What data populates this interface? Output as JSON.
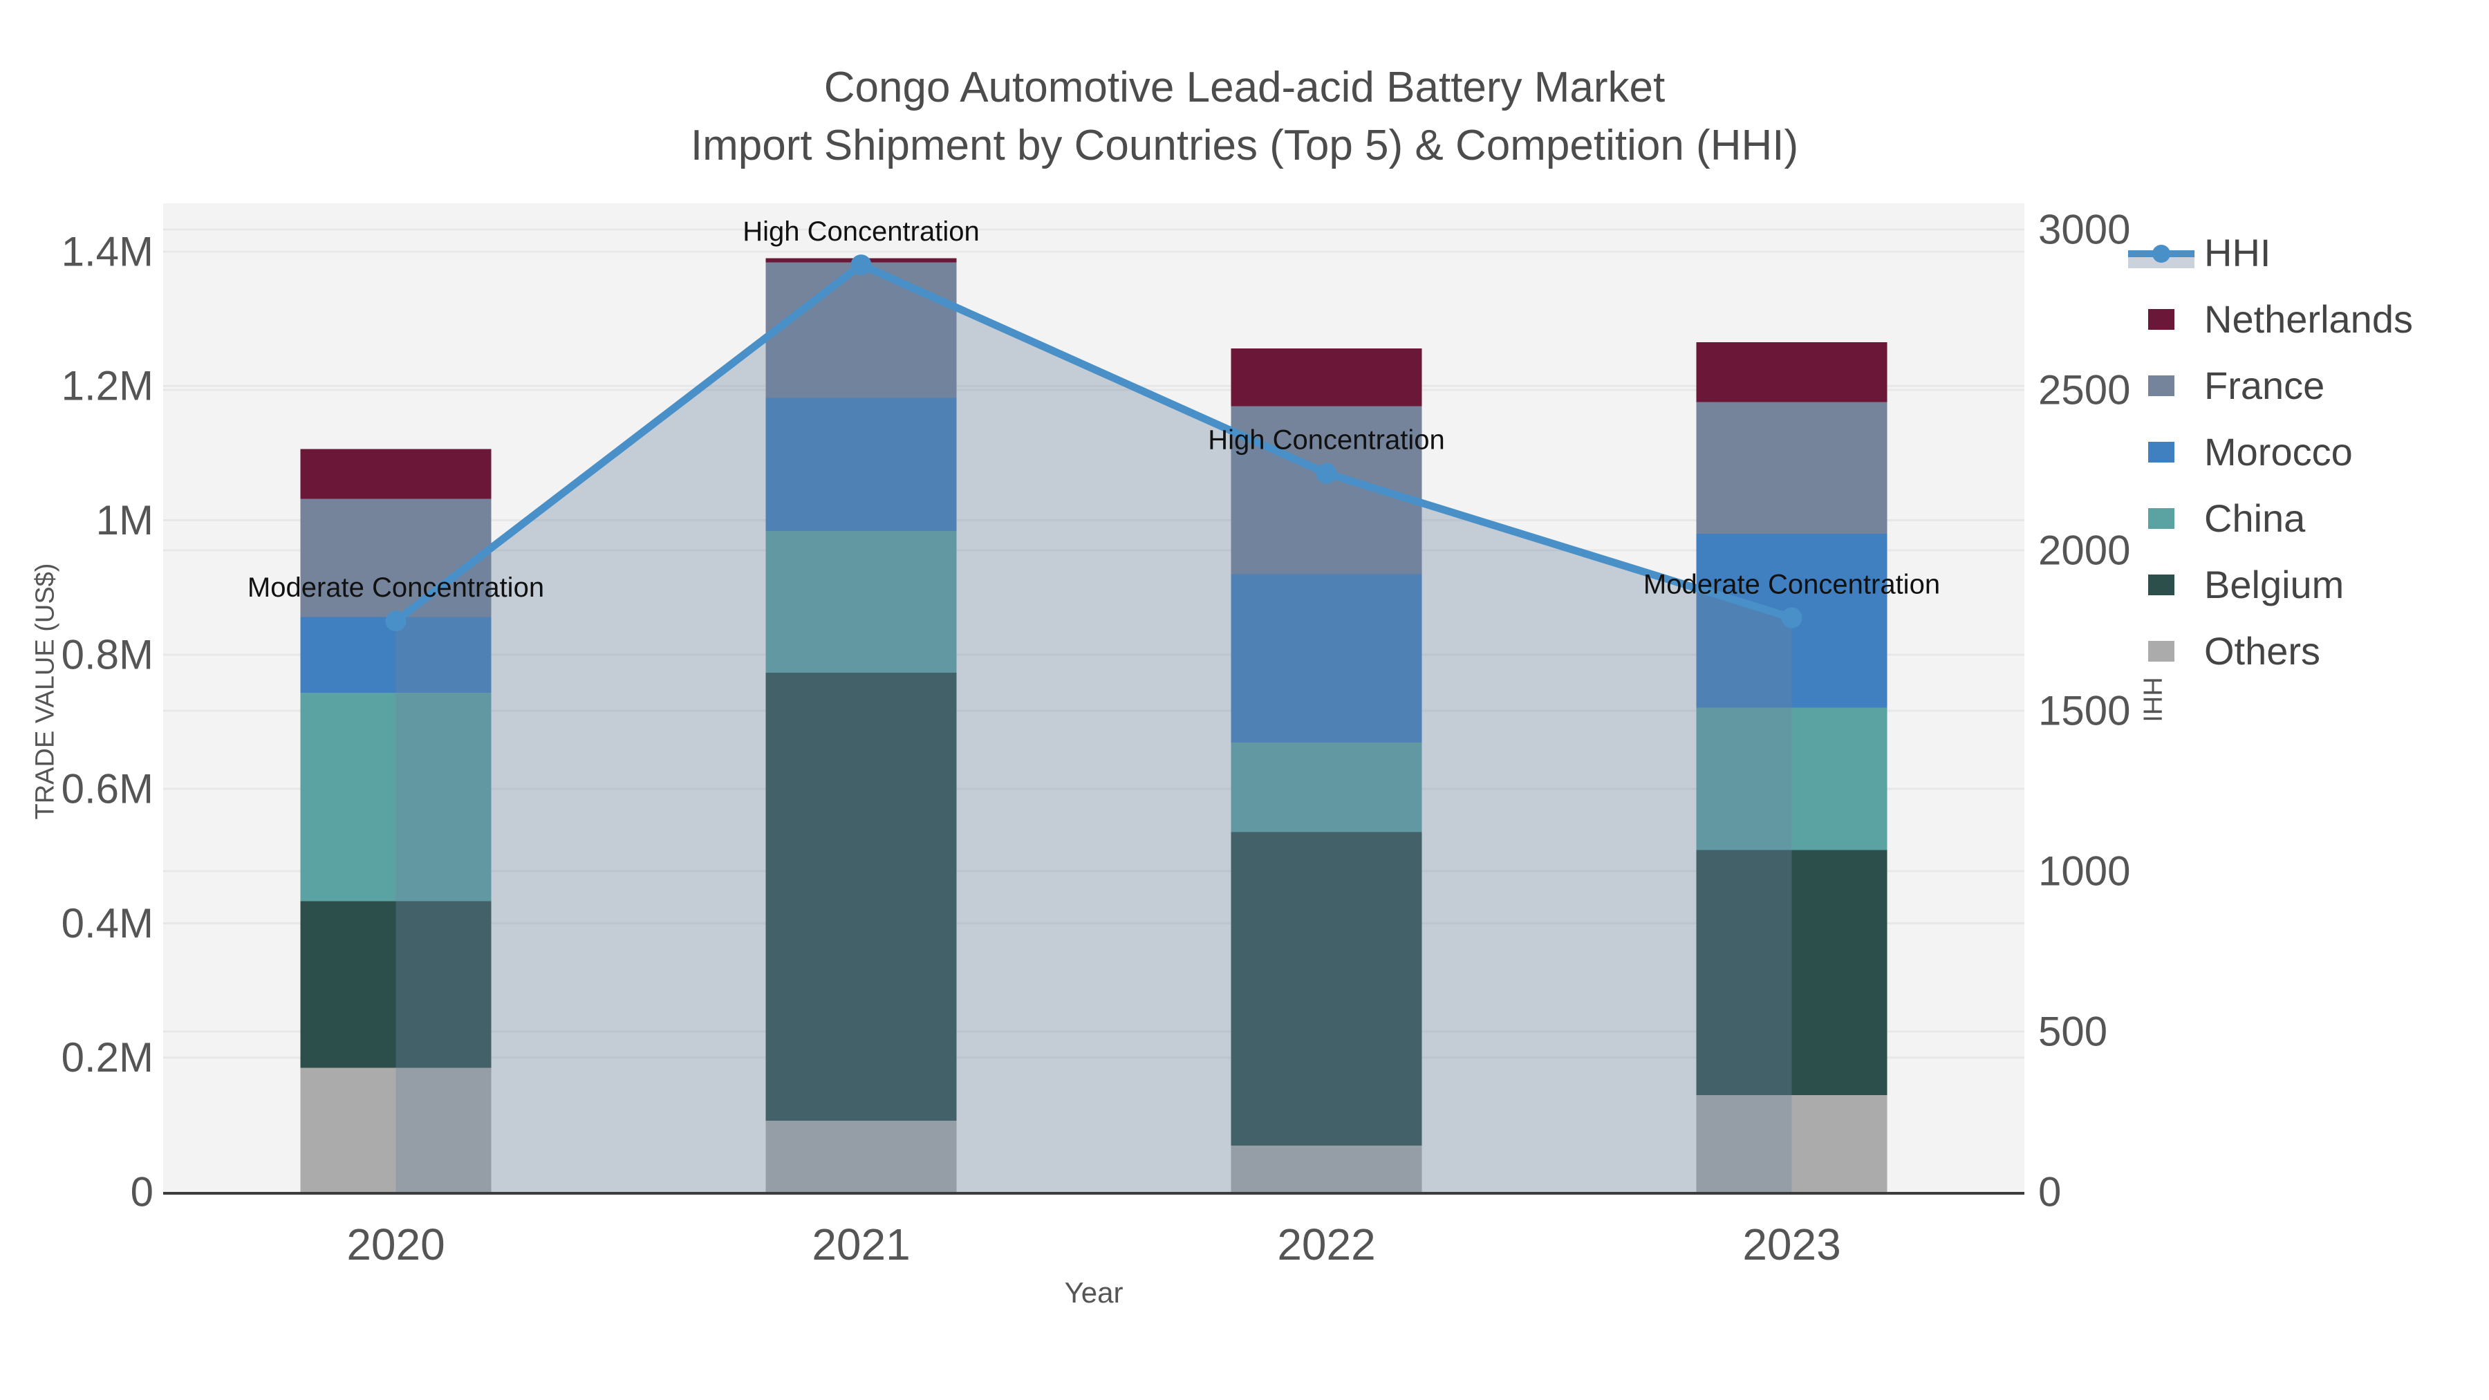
{
  "chart_data": {
    "type": "stacked-bar+line",
    "title": "Congo Automotive Lead-acid Battery Market",
    "subtitle": "Import Shipment by Countries (Top 5) & Competition (HHI)",
    "xlabel": "Year",
    "ylabel_left": "TRADE VALUE (US$)",
    "ylabel_right": "HHI",
    "categories": [
      "2020",
      "2021",
      "2022",
      "2023"
    ],
    "ylim_left": [
      0,
      1472000
    ],
    "ylim_right": [
      0,
      3082
    ],
    "left_ticks": [
      {
        "value": 0,
        "label": "0"
      },
      {
        "value": 200000,
        "label": "0.2M"
      },
      {
        "value": 400000,
        "label": "0.4M"
      },
      {
        "value": 600000,
        "label": "0.6M"
      },
      {
        "value": 800000,
        "label": "0.8M"
      },
      {
        "value": 1000000,
        "label": "1M"
      },
      {
        "value": 1200000,
        "label": "1.2M"
      },
      {
        "value": 1400000,
        "label": "1.4M"
      }
    ],
    "right_ticks": [
      {
        "value": 0,
        "label": "0"
      },
      {
        "value": 500,
        "label": "500"
      },
      {
        "value": 1000,
        "label": "1000"
      },
      {
        "value": 1500,
        "label": "1500"
      },
      {
        "value": 2000,
        "label": "2000"
      },
      {
        "value": 2500,
        "label": "2500"
      },
      {
        "value": 3000,
        "label": "3000"
      }
    ],
    "series": [
      {
        "name": "Others",
        "color": "#ababab",
        "values": [
          185000,
          106000,
          69000,
          144000
        ]
      },
      {
        "name": "Belgium",
        "color": "#2d4f4b",
        "values": [
          248000,
          667000,
          467000,
          365000
        ]
      },
      {
        "name": "China",
        "color": "#5ba3a3",
        "values": [
          310000,
          211000,
          133000,
          212000
        ]
      },
      {
        "name": "Morocco",
        "color": "#4080c0",
        "values": [
          113000,
          198000,
          251000,
          259000
        ]
      },
      {
        "name": "France",
        "color": "#75849b",
        "values": [
          176000,
          202000,
          250000,
          196000
        ]
      },
      {
        "name": "Netherlands",
        "color": "#6b1838",
        "values": [
          74000,
          6000,
          86000,
          89000
        ]
      }
    ],
    "hhi": {
      "name": "HHI",
      "color": "#4a90c8",
      "area_color": "rgba(109,131,160,0.35)",
      "values": [
        1780,
        2890,
        2240,
        1790
      ]
    },
    "annotations": [
      "Moderate Concentration",
      "High Concentration",
      "High Concentration",
      "Moderate Concentration"
    ],
    "legend_order": [
      "HHI",
      "Netherlands",
      "France",
      "Morocco",
      "China",
      "Belgium",
      "Others"
    ]
  }
}
